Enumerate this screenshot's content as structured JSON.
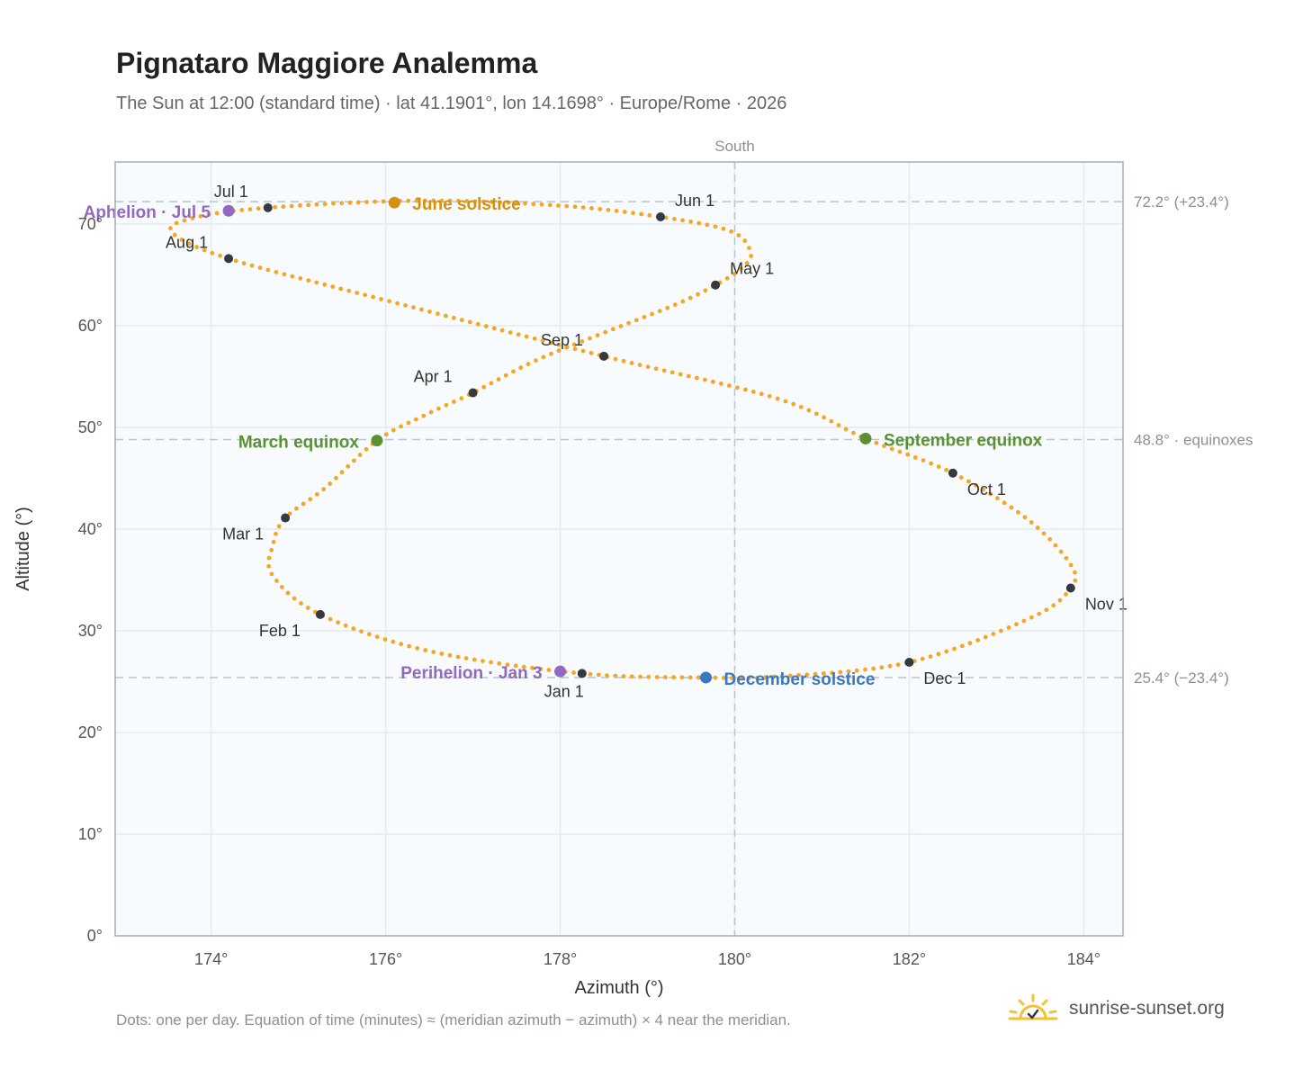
{
  "header": {
    "title": "Pignataro Maggiore Analemma",
    "subtitle": "The Sun at 12:00 (standard time) · lat 41.1901°, lon 14.1698° · Europe/Rome · 2026"
  },
  "footer": {
    "note": "Dots: one per day. Equation of time (minutes) ≈ (meridian azimuth − azimuth) × 4 near the meridian.",
    "brand": "sunrise-sunset.org"
  },
  "colors": {
    "curve": "#f5a623",
    "month_marker": "#353a42",
    "solstice_june": "#d4900f",
    "solstice_december": "#3a78c2",
    "equinox": "#5a9131",
    "apsis": "#9169c0",
    "reference_line": "#b8c4d2",
    "plot_background": "#f8fbfd",
    "grid": "#e5eaf0",
    "frame": "#a3adbb"
  },
  "chart_data": {
    "type": "scatter",
    "xlabel": "Azimuth (°)",
    "ylabel": "Altitude (°)",
    "xlim": [
      172.9,
      184.45
    ],
    "ylim": [
      0,
      76.1
    ],
    "x_ticks": [
      174,
      176,
      178,
      180,
      182,
      184
    ],
    "x_tick_labels": [
      "174°",
      "176°",
      "178°",
      "180°",
      "182°",
      "184°"
    ],
    "y_ticks": [
      0,
      10,
      20,
      30,
      40,
      50,
      60,
      70
    ],
    "y_tick_labels": [
      "0°",
      "10°",
      "20°",
      "30°",
      "40°",
      "50°",
      "60°",
      "70°"
    ],
    "grid": true,
    "meridian": {
      "azimuth": 180,
      "label": "South"
    },
    "reference_lines": [
      {
        "altitude": 72.2,
        "label": "72.2° (+23.4°)"
      },
      {
        "altitude": 48.8,
        "label": "48.8° · equinoxes"
      },
      {
        "altitude": 25.4,
        "label": "25.4° (−23.4°)"
      }
    ],
    "curve_anchor_points": [
      [
        178.25,
        25.8
      ],
      [
        176.5,
        28.0
      ],
      [
        175.25,
        31.6
      ],
      [
        174.7,
        35.5
      ],
      [
        174.71,
        38.5
      ],
      [
        174.85,
        41.1
      ],
      [
        175.3,
        44.0
      ],
      [
        175.9,
        48.7
      ],
      [
        176.45,
        51.2
      ],
      [
        177.0,
        53.4
      ],
      [
        177.7,
        56.5
      ],
      [
        178.5,
        59.3
      ],
      [
        179.3,
        62.0
      ],
      [
        179.78,
        64.0
      ],
      [
        180.1,
        65.8
      ],
      [
        180.18,
        67.3
      ],
      [
        179.95,
        69.3
      ],
      [
        179.15,
        70.7
      ],
      [
        178.0,
        71.8
      ],
      [
        176.4,
        72.3
      ],
      [
        174.65,
        71.6
      ],
      [
        173.8,
        70.6
      ],
      [
        173.55,
        69.2
      ],
      [
        174.2,
        66.6
      ],
      [
        176.0,
        62.5
      ],
      [
        178.5,
        57.0
      ],
      [
        180.5,
        52.8
      ],
      [
        181.5,
        48.9
      ],
      [
        182.5,
        45.5
      ],
      [
        183.35,
        41.0
      ],
      [
        183.85,
        36.5
      ],
      [
        183.85,
        34.2
      ],
      [
        183.4,
        31.3
      ],
      [
        182.0,
        26.9
      ],
      [
        180.5,
        25.5
      ],
      [
        179.65,
        25.4
      ],
      [
        178.25,
        25.8
      ]
    ],
    "month_markers": [
      {
        "label": "Jan 1",
        "x": 178.25,
        "y": 25.8
      },
      {
        "label": "Feb 1",
        "x": 175.25,
        "y": 31.6
      },
      {
        "label": "Mar 1",
        "x": 174.85,
        "y": 41.1
      },
      {
        "label": "Apr 1",
        "x": 177.0,
        "y": 53.4
      },
      {
        "label": "May 1",
        "x": 179.78,
        "y": 64.0
      },
      {
        "label": "Jun 1",
        "x": 179.15,
        "y": 70.7
      },
      {
        "label": "Jul 1",
        "x": 174.65,
        "y": 71.6
      },
      {
        "label": "Aug 1",
        "x": 174.2,
        "y": 66.6
      },
      {
        "label": "Sep 1",
        "x": 178.5,
        "y": 57.0
      },
      {
        "label": "Oct 1",
        "x": 182.5,
        "y": 45.5
      },
      {
        "label": "Nov 1",
        "x": 183.85,
        "y": 34.2
      },
      {
        "label": "Dec 1",
        "x": 182.0,
        "y": 26.9
      }
    ],
    "special_events": [
      {
        "label": "June solstice",
        "x": 176.1,
        "y": 72.1,
        "kind": "solstice_june"
      },
      {
        "label": "December solstice",
        "x": 179.67,
        "y": 25.4,
        "kind": "solstice_december"
      },
      {
        "label": "March equinox",
        "x": 175.9,
        "y": 48.7,
        "kind": "equinox"
      },
      {
        "label": "September equinox",
        "x": 181.5,
        "y": 48.9,
        "kind": "equinox"
      },
      {
        "label": "Aphelion · Jul 5",
        "x": 174.2,
        "y": 71.3,
        "kind": "apsis"
      },
      {
        "label": "Perihelion · Jan 3",
        "x": 178.0,
        "y": 26.0,
        "kind": "apsis"
      }
    ]
  }
}
